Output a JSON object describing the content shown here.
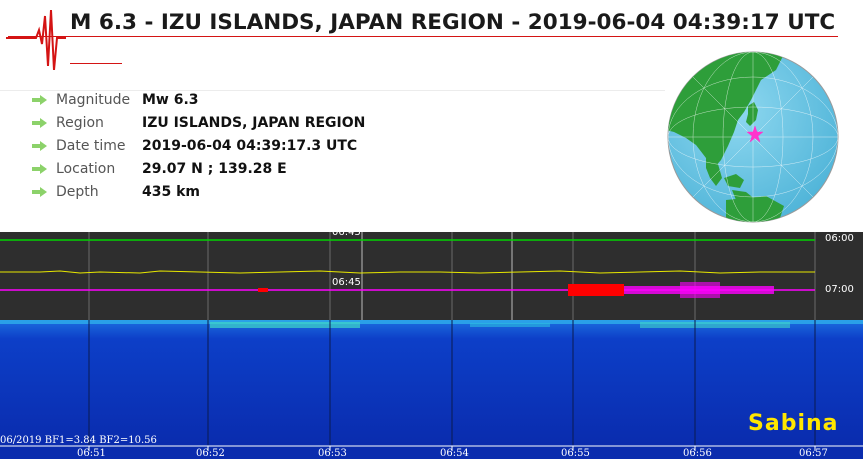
{
  "title": "M 6.3 - IZU ISLANDS, JAPAN REGION - 2019-06-04 04:39:17 UTC",
  "info": [
    {
      "label": "Magnitude",
      "value": "Mw 6.3"
    },
    {
      "label": "Region",
      "value": "IZU ISLANDS, JAPAN REGION"
    },
    {
      "label": "Date time",
      "value": "2019-06-04 04:39:17.3 UTC"
    },
    {
      "label": "Location",
      "value": "29.07 N ; 139.28 E"
    },
    {
      "label": "Depth",
      "value": "435 km"
    }
  ],
  "helicorder": {
    "right_labels": [
      "06:00",
      "07:00"
    ],
    "inline_labels": [
      "06:45",
      "06:45"
    ],
    "trace_colors": [
      "#00d400",
      "#e8e800",
      "#ff00ff"
    ],
    "event_color": "#ff0000"
  },
  "spectrogram": {
    "caption": "06/2019 BF1=3.84 BF2=10.56",
    "watermark": "Sabina",
    "time_ticks": [
      "06:51",
      "06:52",
      "06:53",
      "06:54",
      "06:55",
      "06:56",
      "06:57"
    ]
  },
  "globe": {
    "marker": "pink-star-icon",
    "epicenter_lat": 29.07,
    "epicenter_lon": 139.28
  },
  "colors": {
    "accent_red": "#d41414",
    "arrow_green": "#8cd26a",
    "ocean": "#6ec8e6",
    "land": "#2e9e3a"
  }
}
